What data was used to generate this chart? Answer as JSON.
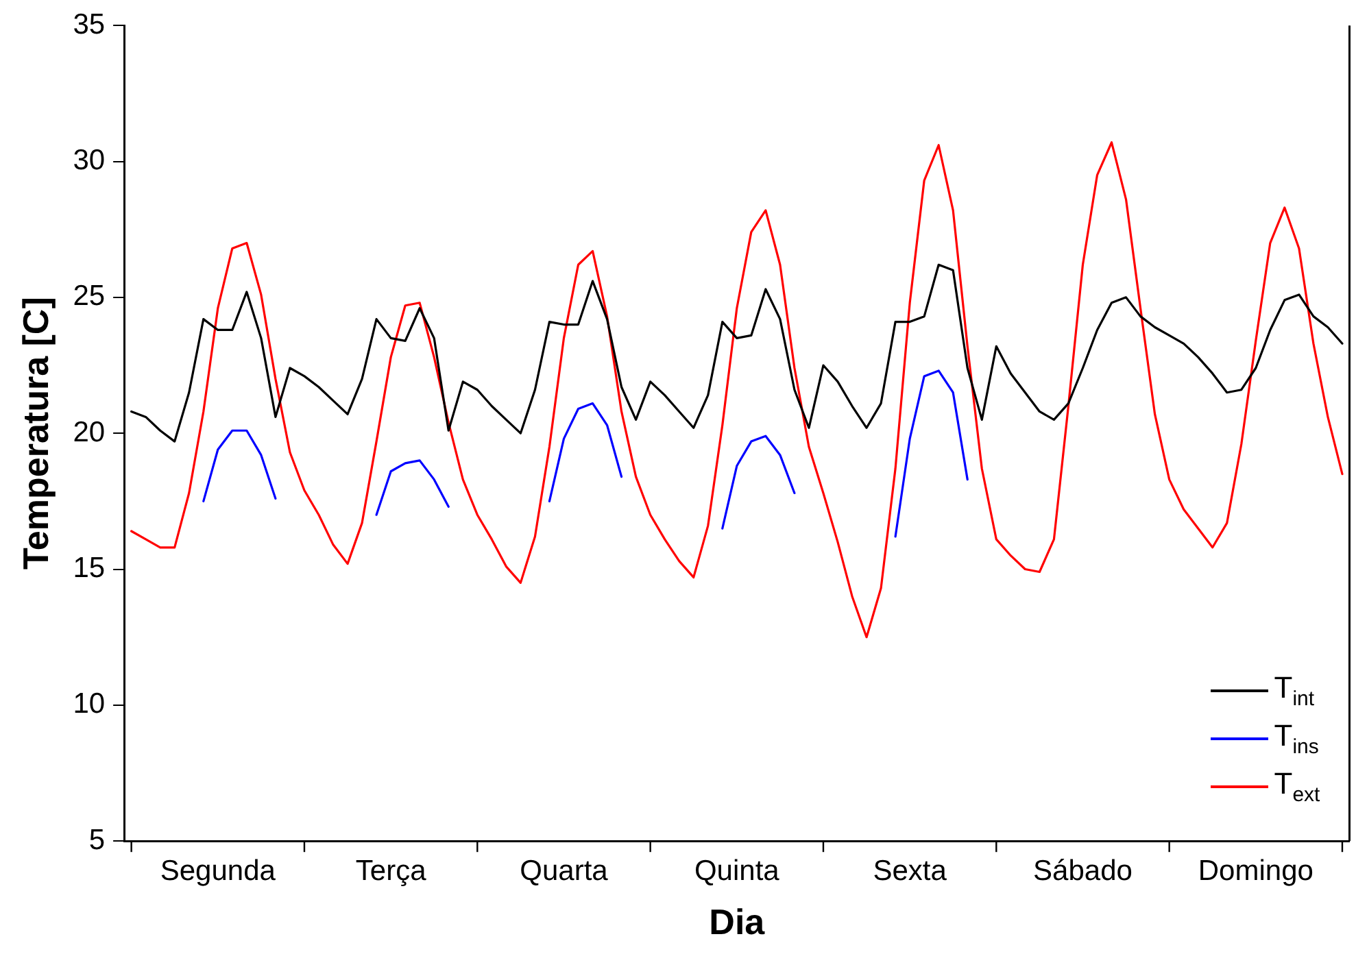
{
  "chart_data": {
    "type": "line",
    "xlabel": "Dia",
    "ylabel": "Temperatura [C]",
    "legend": "bottom right",
    "marker": "none",
    "line_style": "solid",
    "categories": [
      null,
      null,
      null,
      null,
      null,
      null,
      "Segunda",
      null,
      null,
      null,
      null,
      null,
      null,
      null,
      null,
      null,
      null,
      null,
      "Terça",
      null,
      null,
      null,
      null,
      null,
      null,
      null,
      null,
      null,
      null,
      null,
      "Quarta",
      null,
      null,
      null,
      null,
      null,
      null,
      null,
      null,
      null,
      null,
      null,
      "Quinta",
      null,
      null,
      null,
      null,
      null,
      null,
      null,
      null,
      null,
      null,
      null,
      "Sexta",
      null,
      null,
      null,
      null,
      null,
      null,
      null,
      null,
      null,
      null,
      null,
      "Sábado",
      null,
      null,
      null,
      null,
      null,
      null,
      null,
      null,
      null,
      null,
      null,
      "Domingo",
      null,
      null,
      null,
      null,
      null,
      null
    ],
    "ylim": [
      5,
      35
    ],
    "yticks": [
      5,
      10,
      15,
      20,
      25,
      30,
      35
    ],
    "series": [
      {
        "name": "T$_{int}$",
        "color": "#000000",
        "values": [
          20.8,
          20.6,
          20.1,
          19.7,
          21.5,
          24.2,
          23.8,
          23.8,
          25.2,
          23.5,
          20.6,
          22.4,
          22.1,
          21.7,
          21.2,
          20.7,
          22.0,
          24.2,
          23.5,
          23.4,
          24.6,
          23.5,
          20.1,
          21.9,
          21.6,
          21.0,
          20.5,
          20.0,
          21.6,
          24.1,
          24.0,
          24.0,
          25.6,
          24.2,
          21.7,
          20.5,
          21.9,
          21.4,
          20.8,
          20.2,
          21.4,
          24.1,
          23.5,
          23.6,
          25.3,
          24.2,
          21.6,
          20.2,
          22.5,
          21.9,
          21.0,
          20.2,
          21.1,
          24.1,
          24.1,
          24.3,
          26.2,
          26.0,
          22.4,
          20.5,
          23.2,
          22.2,
          21.5,
          20.8,
          20.5,
          21.1,
          22.4,
          23.8,
          24.8,
          25.0,
          24.3,
          23.9,
          23.6,
          23.3,
          22.8,
          22.2,
          21.5,
          21.6,
          22.4,
          23.8,
          24.9,
          25.1,
          24.3,
          23.9,
          23.3
        ]
      },
      {
        "name": "T$_{ins}$",
        "color": "#0000ff",
        "values": [
          null,
          null,
          null,
          null,
          null,
          17.5,
          19.4,
          20.1,
          20.1,
          19.2,
          17.6,
          null,
          null,
          null,
          null,
          null,
          null,
          17.0,
          18.6,
          18.9,
          19.0,
          18.3,
          17.3,
          null,
          null,
          null,
          null,
          null,
          null,
          17.5,
          19.8,
          20.9,
          21.1,
          20.3,
          18.4,
          null,
          null,
          null,
          null,
          null,
          null,
          16.5,
          18.8,
          19.7,
          19.9,
          19.2,
          17.8,
          null,
          null,
          null,
          null,
          null,
          null,
          16.2,
          19.8,
          22.1,
          22.3,
          21.5,
          18.3,
          null,
          null,
          null,
          null,
          null,
          null,
          null,
          null,
          null,
          null,
          null,
          null,
          null,
          null,
          null,
          null,
          null,
          null,
          null,
          null,
          null,
          null,
          null,
          null,
          null,
          null
        ]
      },
      {
        "name": "T$_{ext}$",
        "color": "#ff0000",
        "values": [
          16.4,
          16.1,
          15.8,
          15.8,
          17.8,
          20.8,
          24.6,
          26.8,
          27.0,
          25.1,
          22.0,
          19.3,
          17.9,
          17.0,
          15.9,
          15.2,
          16.7,
          19.7,
          22.8,
          24.7,
          24.8,
          22.8,
          20.4,
          18.3,
          17.0,
          16.1,
          15.1,
          14.5,
          16.2,
          19.5,
          23.5,
          26.2,
          26.7,
          24.3,
          20.8,
          18.4,
          17.0,
          16.1,
          15.3,
          14.7,
          16.6,
          20.3,
          24.6,
          27.4,
          28.2,
          26.2,
          22.4,
          19.5,
          17.8,
          16.0,
          14.0,
          12.5,
          14.3,
          18.7,
          24.8,
          29.3,
          30.6,
          28.2,
          23.2,
          18.7,
          16.1,
          15.5,
          15.0,
          14.9,
          16.1,
          21.0,
          26.2,
          29.5,
          30.7,
          28.6,
          24.6,
          20.7,
          18.3,
          17.2,
          16.5,
          15.8,
          16.7,
          19.6,
          23.4,
          27.0,
          28.3,
          26.8,
          23.3,
          20.6,
          18.5
        ]
      }
    ]
  }
}
